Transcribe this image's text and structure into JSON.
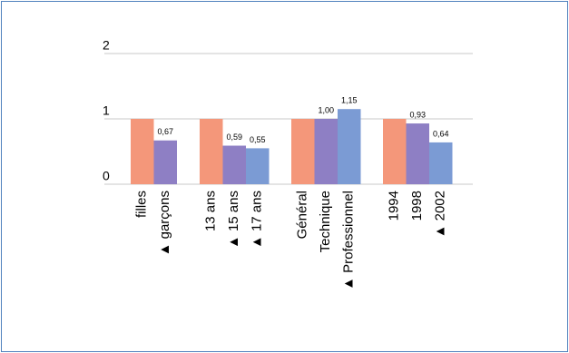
{
  "chart_data": {
    "type": "bar",
    "ylim": [
      0,
      2
    ],
    "yticks": [
      0,
      1,
      2
    ],
    "grid": true,
    "groups": [
      {
        "categories": [
          "filles",
          "▲ garçons"
        ],
        "values": [
          1,
          0.67
        ],
        "value_labels": [
          null,
          "0,67"
        ],
        "colors": [
          "#f4977a",
          "#8e7fc4"
        ]
      },
      {
        "categories": [
          "13 ans",
          "▲ 15 ans",
          "▲ 17 ans"
        ],
        "values": [
          1,
          0.59,
          0.55
        ],
        "value_labels": [
          null,
          "0,59",
          "0,55"
        ],
        "colors": [
          "#f4977a",
          "#8e7fc4",
          "#7b9bd4"
        ]
      },
      {
        "categories": [
          "Général",
          "Technique",
          "▲ Professionnel"
        ],
        "values": [
          1,
          1.0,
          1.15
        ],
        "value_labels": [
          null,
          "1,00",
          "1,15"
        ],
        "colors": [
          "#f4977a",
          "#8e7fc4",
          "#7b9bd4"
        ]
      },
      {
        "categories": [
          "1994",
          "1998",
          "▲ 2002"
        ],
        "values": [
          1,
          0.93,
          0.64
        ],
        "value_labels": [
          null,
          "0,93",
          "0,64"
        ],
        "colors": [
          "#f4977a",
          "#8e7fc4",
          "#7b9bd4"
        ]
      }
    ]
  }
}
